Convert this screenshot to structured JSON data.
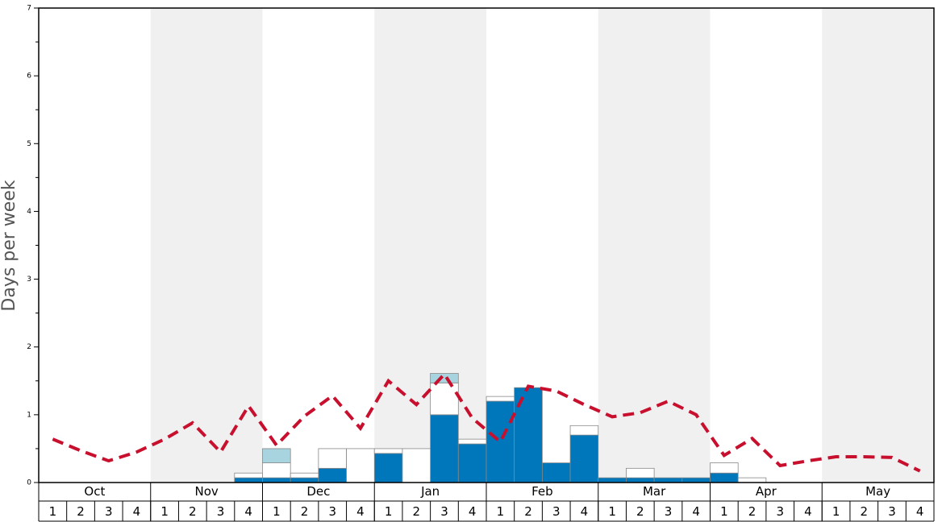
{
  "chart_data": {
    "type": "bar",
    "stacked": true,
    "ylabel": "Days per week",
    "months": [
      "Oct",
      "Nov",
      "Dec",
      "Jan",
      "Feb",
      "Mar",
      "Apr",
      "May"
    ],
    "categories": [
      "1",
      "2",
      "3",
      "4",
      "1",
      "2",
      "3",
      "4",
      "1",
      "2",
      "3",
      "4",
      "1",
      "2",
      "3",
      "4",
      "1",
      "2",
      "3",
      "4",
      "1",
      "2",
      "3",
      "4",
      "1",
      "2",
      "3",
      "4",
      "1",
      "2",
      "3",
      "4"
    ],
    "ylim": [
      0,
      7
    ],
    "yticks": [
      0,
      1,
      2,
      3,
      4,
      5,
      6,
      7
    ],
    "yminorticks": [
      0.5,
      1.5,
      2.5,
      3.5,
      4.5,
      5.5,
      6.5
    ],
    "band_color": "#f0f0f0",
    "series": [
      {
        "color": "#0077bb",
        "values": [
          0,
          0,
          0,
          0,
          0,
          0,
          0,
          0.07,
          0.07,
          0.07,
          0.21,
          0,
          0.43,
          0,
          1.0,
          0.57,
          1.2,
          1.4,
          0.29,
          0.7,
          0.07,
          0.07,
          0.07,
          0.07,
          0.14,
          0,
          0,
          0,
          0,
          0,
          0,
          0
        ]
      },
      {
        "color": "#ffffff",
        "values": [
          0,
          0,
          0,
          0,
          0,
          0,
          0,
          0.07,
          0.22,
          0.07,
          0.29,
          0.5,
          0.07,
          0.5,
          0.47,
          0.07,
          0.07,
          0,
          0,
          0.14,
          0,
          0.14,
          0,
          0,
          0.15,
          0.07,
          0,
          0,
          0,
          0,
          0,
          0
        ]
      },
      {
        "color": "#a8d4e0",
        "values": [
          0,
          0,
          0,
          0,
          0,
          0,
          0,
          0,
          0.21,
          0,
          0,
          0,
          0,
          0,
          0.14,
          0,
          0,
          0,
          0,
          0,
          0,
          0,
          0,
          0,
          0,
          0,
          0,
          0,
          0,
          0,
          0,
          0
        ]
      },
      {
        "type": "line",
        "dashed": true,
        "color": "#c8102e",
        "values": [
          0.64,
          0.47,
          0.32,
          0.45,
          0.64,
          0.88,
          0.45,
          1.13,
          0.55,
          0.98,
          1.28,
          0.8,
          1.5,
          1.15,
          1.6,
          0.95,
          0.6,
          1.42,
          1.35,
          1.15,
          0.97,
          1.03,
          1.2,
          1.0,
          0.4,
          0.65,
          0.25,
          0.32,
          0.38,
          0.38,
          0.37,
          0.17
        ]
      }
    ]
  }
}
